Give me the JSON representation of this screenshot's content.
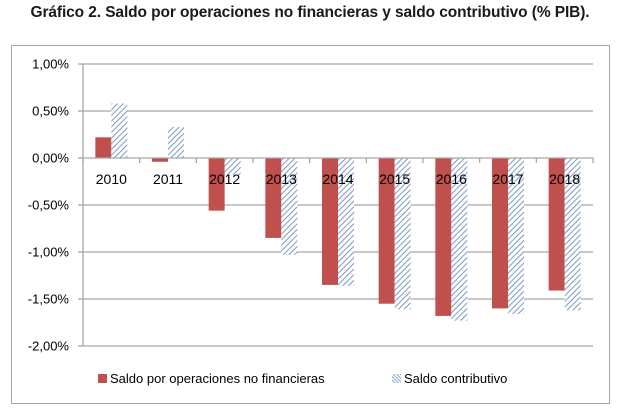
{
  "title": "Gráfico 2. Saldo por operaciones no financieras y saldo contributivo (% PIB).",
  "colors": {
    "series1": "#c0504d",
    "series2_hatch": "#5b7fb5",
    "gridline": "#a6a6a6",
    "frame": "#a6a6a6"
  },
  "chart_data": {
    "type": "bar",
    "title": "Gráfico 2. Saldo por operaciones no financieras y saldo contributivo (% PIB).",
    "xlabel": "",
    "ylabel": "",
    "categories": [
      "2010",
      "2011",
      "2012",
      "2013",
      "2014",
      "2015",
      "2016",
      "2017",
      "2018"
    ],
    "series": [
      {
        "name": "Saldo por operaciones no financieras",
        "style": "solid",
        "values": [
          0.22,
          -0.04,
          -0.56,
          -0.85,
          -1.35,
          -1.55,
          -1.68,
          -1.6,
          -1.41
        ]
      },
      {
        "name": "Saldo contributivo",
        "style": "hatched",
        "values": [
          0.58,
          0.33,
          -0.18,
          -1.03,
          -1.36,
          -1.61,
          -1.73,
          -1.66,
          -1.62
        ]
      }
    ],
    "ylim": [
      -2.0,
      1.0
    ],
    "yticks": [
      1.0,
      0.5,
      0.0,
      -0.5,
      -1.0,
      -1.5,
      -2.0
    ],
    "ytick_labels": [
      "1,00%",
      "0,50%",
      "0,00%",
      "-0,50%",
      "-1,00%",
      "-1,50%",
      "-2,00%"
    ],
    "grid": true,
    "legend_position": "bottom",
    "category_labels_position": "at-zero-line"
  }
}
